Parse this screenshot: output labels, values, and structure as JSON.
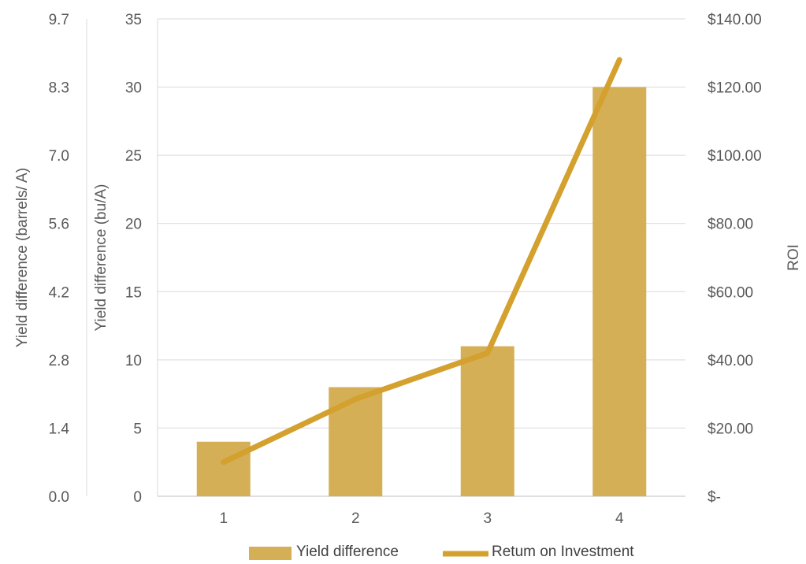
{
  "chart_data": {
    "type": "bar",
    "categories": [
      "1",
      "2",
      "3",
      "4"
    ],
    "series": [
      {
        "name": "Yield difference",
        "type": "bar",
        "axis": "primary",
        "values": [
          4,
          8,
          11,
          30
        ],
        "color": "#D4AF55"
      },
      {
        "name": "Return on Investment",
        "type": "line",
        "axis": "secondary",
        "values": [
          10,
          28.5,
          42,
          128
        ],
        "color": "#D4A02E"
      }
    ],
    "y_far_left": {
      "label": "Yield difference (barrels/ A)",
      "ticks": [
        "0.0",
        "1.4",
        "2.8",
        "4.2",
        "5.6",
        "7.0",
        "8.3",
        "9.7"
      ]
    },
    "y_left": {
      "label": "Yield difference (bu/A)",
      "ticks": [
        "0",
        "5",
        "10",
        "15",
        "20",
        "25",
        "30",
        "35"
      ],
      "ylim": [
        0,
        35
      ]
    },
    "y_right": {
      "label": "ROI",
      "ticks": [
        "$-",
        "$20.00",
        "$40.00",
        "$60.00",
        "$80.00",
        "$100.00",
        "$120.00",
        "$140.00"
      ],
      "ylim": [
        0,
        140
      ]
    },
    "x_ticks": [
      "1",
      "2",
      "3",
      "4"
    ],
    "grid": true,
    "legend_position": "bottom",
    "legend": [
      {
        "label": "Yield difference",
        "kind": "bar"
      },
      {
        "label": "Retum on Investment",
        "kind": "line"
      }
    ]
  }
}
